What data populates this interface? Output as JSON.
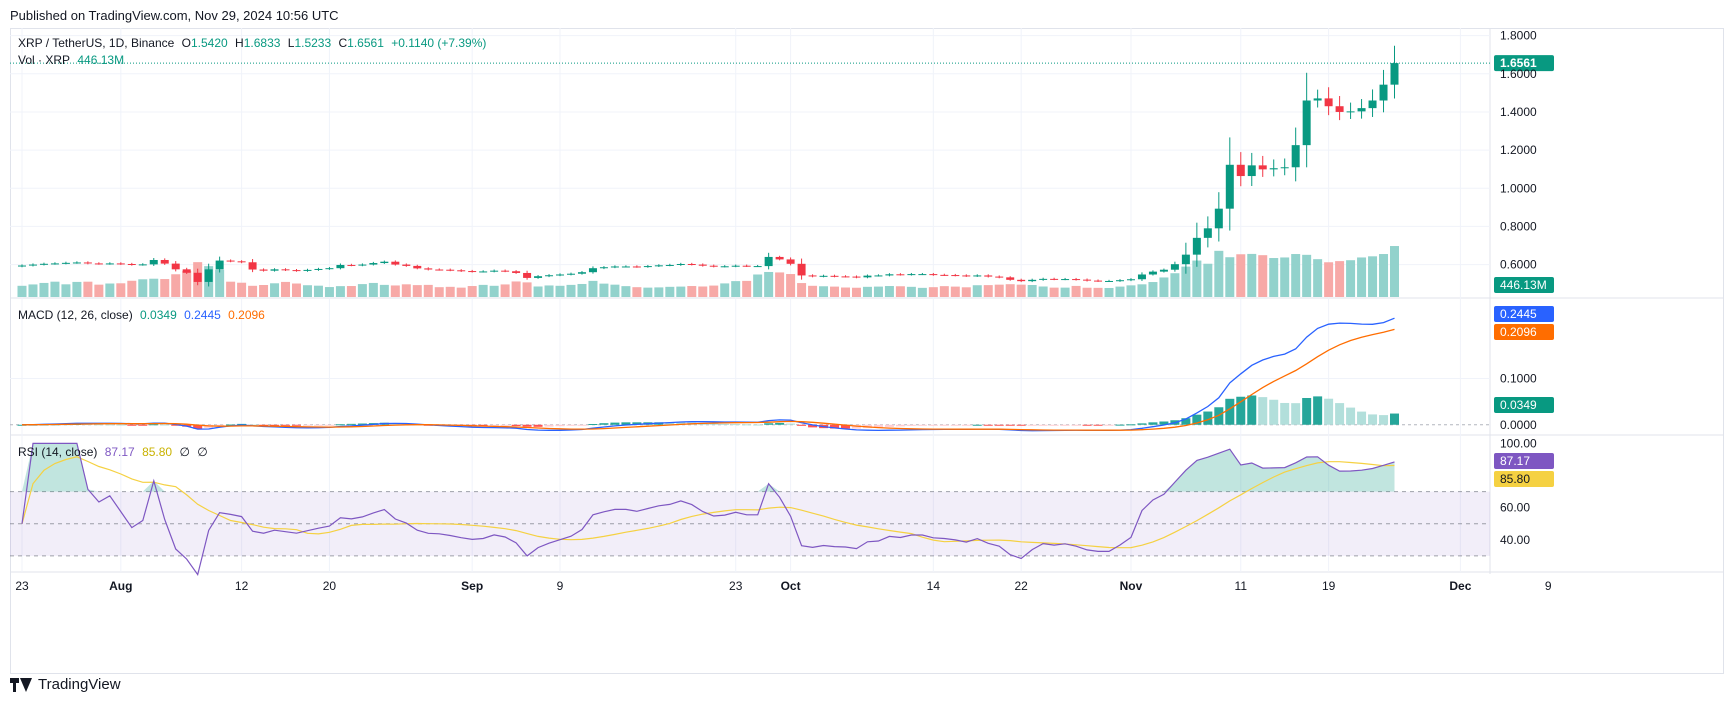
{
  "header": {
    "published": "Published on TradingView.com, Nov 29, 2024 10:56 UTC"
  },
  "footer": {
    "brand": "TradingView"
  },
  "legend": {
    "symbol": "XRP / TetherUS, 1D, Binance",
    "o_label": "O",
    "o": "1.5420",
    "h_label": "H",
    "h": "1.6833",
    "l_label": "L",
    "l": "1.5233",
    "c_label": "C",
    "c": "1.6561",
    "change": "+0.1140 (+7.39%)",
    "vol_label": "Vol · XRP",
    "vol": "446.13M",
    "macd_label": "MACD (12, 26, close)",
    "macd_hist": "0.0349",
    "macd": "0.2445",
    "macd_signal": "0.2096",
    "rsi_label": "RSI (14, close)",
    "rsi": "87.17",
    "rsi_ma": "85.80",
    "rsi_na1": "∅",
    "rsi_na2": "∅"
  },
  "colors": {
    "up": "#089981",
    "down": "#f23645",
    "vol_up": "#92d2cc",
    "vol_down": "#f7a9a7",
    "macd": "#2962ff",
    "signal": "#ff6d00",
    "rsi": "#7e57c2",
    "rsi_ma": "#f5d142",
    "hist_up_strong": "#26a69a",
    "hist_up_weak": "#b2dfdb",
    "hist_down_strong": "#ff5252",
    "hist_down_weak": "#ffcdd2"
  },
  "chart_data": {
    "type": "candlestick",
    "x_tick_labels": [
      "23",
      "Aug",
      "12",
      "20",
      "Sep",
      "9",
      "23",
      "Oct",
      "14",
      "22",
      "Nov",
      "11",
      "19",
      "Dec",
      "9"
    ],
    "x_tick_day_index": [
      0,
      9,
      20,
      28,
      41,
      49,
      65,
      70,
      83,
      91,
      101,
      111,
      119,
      131,
      139
    ],
    "price_axis": {
      "ticks": [
        "1.8000",
        "1.6000",
        "1.4000",
        "1.2000",
        "1.0000",
        "0.8000",
        "0.6000"
      ],
      "range": [
        0.43,
        1.84
      ]
    },
    "last_price_label": "1.6561",
    "volume_label": "446.13M",
    "macd_axis": {
      "ticks": [
        "0.1000",
        "0.0000"
      ],
      "range": [
        -0.02,
        0.27
      ]
    },
    "rsi_axis": {
      "ticks": [
        "100.00",
        "60.00",
        "40.00"
      ],
      "bands": [
        70,
        50,
        30
      ],
      "range": [
        20,
        104
      ]
    },
    "macd_value_labels": [
      "0.2445",
      "0.2096",
      "0.0349"
    ],
    "rsi_value_labels": [
      "87.17",
      "85.80"
    ],
    "closes": [
      0.595,
      0.6,
      0.604,
      0.606,
      0.609,
      0.611,
      0.606,
      0.604,
      0.606,
      0.603,
      0.599,
      0.601,
      0.624,
      0.605,
      0.575,
      0.557,
      0.509,
      0.575,
      0.621,
      0.617,
      0.612,
      0.574,
      0.568,
      0.575,
      0.571,
      0.567,
      0.572,
      0.577,
      0.581,
      0.598,
      0.596,
      0.6,
      0.608,
      0.615,
      0.6,
      0.593,
      0.58,
      0.574,
      0.573,
      0.57,
      0.566,
      0.563,
      0.564,
      0.568,
      0.565,
      0.556,
      0.53,
      0.539,
      0.544,
      0.548,
      0.552,
      0.56,
      0.581,
      0.586,
      0.59,
      0.59,
      0.588,
      0.592,
      0.596,
      0.598,
      0.603,
      0.6,
      0.594,
      0.59,
      0.591,
      0.594,
      0.592,
      0.592,
      0.64,
      0.627,
      0.604,
      0.543,
      0.538,
      0.541,
      0.538,
      0.537,
      0.533,
      0.542,
      0.543,
      0.549,
      0.547,
      0.55,
      0.55,
      0.546,
      0.545,
      0.543,
      0.54,
      0.543,
      0.537,
      0.533,
      0.52,
      0.513,
      0.52,
      0.525,
      0.523,
      0.524,
      0.521,
      0.516,
      0.514,
      0.514,
      0.518,
      0.523,
      0.548,
      0.563,
      0.573,
      0.602,
      0.652,
      0.74,
      0.79,
      0.893,
      1.123,
      1.064,
      1.12,
      1.099,
      1.105,
      1.11,
      1.226,
      1.46,
      1.471,
      1.43,
      1.4,
      1.403,
      1.42,
      1.46,
      1.543,
      1.656
    ],
    "volumes_m": [
      98,
      110,
      123,
      134,
      111,
      132,
      134,
      108,
      118,
      120,
      142,
      155,
      160,
      157,
      199,
      229,
      305,
      270,
      239,
      134,
      125,
      98,
      105,
      120,
      132,
      118,
      103,
      99,
      87,
      95,
      96,
      113,
      123,
      106,
      101,
      111,
      104,
      106,
      86,
      89,
      82,
      96,
      106,
      98,
      110,
      136,
      128,
      92,
      101,
      98,
      106,
      114,
      141,
      117,
      108,
      95,
      86,
      82,
      84,
      89,
      91,
      96,
      92,
      100,
      119,
      139,
      141,
      197,
      219,
      215,
      201,
      122,
      98,
      94,
      91,
      83,
      81,
      89,
      91,
      96,
      94,
      89,
      80,
      86,
      95,
      91,
      85,
      103,
      104,
      108,
      112,
      108,
      105,
      92,
      82,
      82,
      97,
      81,
      80,
      79,
      91,
      102,
      111,
      131,
      171,
      208,
      266,
      319,
      291,
      404,
      348,
      374,
      377,
      366,
      341,
      346,
      376,
      369,
      331,
      304,
      314,
      322,
      346,
      356,
      376,
      446
    ]
  }
}
